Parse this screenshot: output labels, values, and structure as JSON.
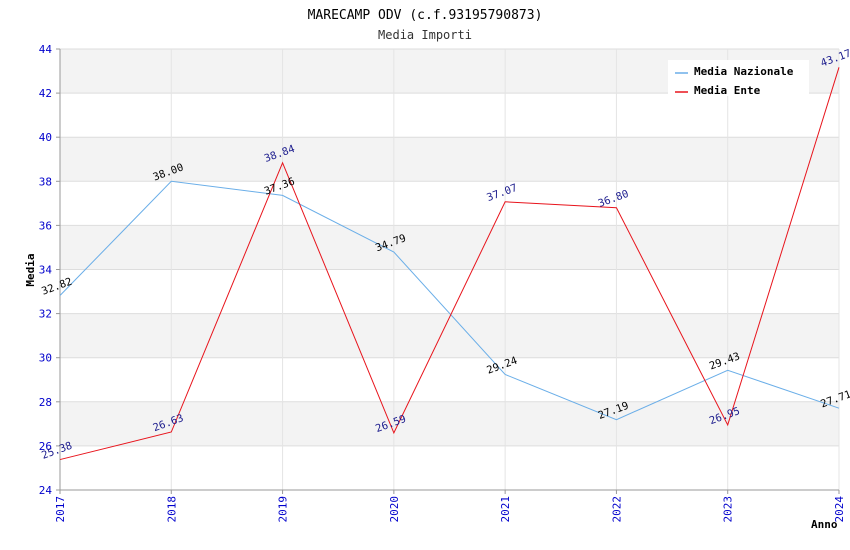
{
  "chart_data": {
    "type": "line",
    "title": "MARECAMP ODV (c.f.93195790873)",
    "subtitle": "Media Importi",
    "xlabel": "Anno",
    "ylabel": "Media",
    "x": [
      "2017",
      "2018",
      "2019",
      "2020",
      "2021",
      "2022",
      "2023",
      "2024"
    ],
    "ylim": [
      24,
      44
    ],
    "yticks": [
      24,
      26,
      28,
      30,
      32,
      34,
      36,
      38,
      40,
      42,
      44
    ],
    "ytick_labels": [
      "24",
      "26",
      "28",
      "30",
      "32",
      "34",
      "36",
      "38",
      "40",
      "42",
      "44"
    ],
    "grid": true,
    "legend": "top-right",
    "series": [
      {
        "name": "Media Nazionale",
        "color": "#6aaee8",
        "values": [
          32.82,
          38.0,
          37.36,
          34.79,
          29.24,
          27.19,
          29.43,
          27.71
        ],
        "labels": [
          "32.82",
          "38.00",
          "37.36",
          "34.79",
          "29.24",
          "27.19",
          "29.43",
          "27.71"
        ]
      },
      {
        "name": "Media Ente",
        "color": "#e8141c",
        "values": [
          25.38,
          26.63,
          38.84,
          26.59,
          37.07,
          36.8,
          26.95,
          43.17
        ],
        "labels": [
          "25.38",
          "26.63",
          "38.84",
          "26.59",
          "37.07",
          "36.80",
          "26.95",
          "43.17"
        ]
      }
    ]
  }
}
